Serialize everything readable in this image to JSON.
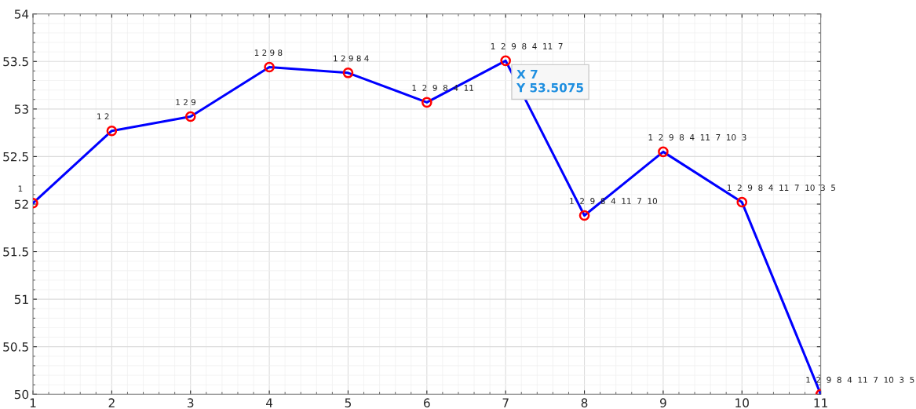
{
  "chart_data": {
    "type": "line",
    "x": [
      1,
      2,
      3,
      4,
      5,
      6,
      7,
      8,
      9,
      10,
      11
    ],
    "series": [
      {
        "color": "#0000ff",
        "values": [
          52.01,
          52.77,
          52.92,
          53.44,
          53.38,
          53.07,
          53.5075,
          51.88,
          52.55,
          52.02,
          50.0
        ]
      }
    ],
    "xlim": [
      1,
      11
    ],
    "xticks": [
      1,
      2,
      3,
      4,
      5,
      6,
      7,
      8,
      9,
      10,
      11
    ],
    "ylim": [
      50,
      54
    ],
    "yticks": [
      50,
      50.5,
      51,
      51.5,
      52,
      52.5,
      53,
      53.5,
      54
    ],
    "grid": true,
    "marker": "circle",
    "line_style": "solid",
    "annotations": [
      {
        "text": "1",
        "x": 1,
        "y": 52.01
      },
      {
        "text": "1 2",
        "x": 2,
        "y": 52.77
      },
      {
        "text": "1 2 9",
        "x": 3,
        "y": 52.92
      },
      {
        "text": "1 2 9 8",
        "x": 4,
        "y": 53.44
      },
      {
        "text": "1 2 9 8 4",
        "x": 5,
        "y": 53.38
      },
      {
        "text": "1  2  9  8  4  11",
        "x": 6,
        "y": 53.07
      },
      {
        "text": "1  2  9  8  4  11  7",
        "x": 7,
        "y": 53.5075
      },
      {
        "text": "1  2  9  8  4  11  7  10",
        "x": 8,
        "y": 51.88
      },
      {
        "text": "1  2  9  8  4  11  7  10  3",
        "x": 9,
        "y": 52.55
      },
      {
        "text": "1  2  9  8  4  11  7  10  3  5",
        "x": 10,
        "y": 52.02
      },
      {
        "text": "1  2  9  8  4  11  7  10  3  5",
        "x": 11,
        "y": 50.0
      },
      {
        "text": "X 7\nY 53.5075",
        "x": 7,
        "y": 53.5075
      }
    ]
  }
}
